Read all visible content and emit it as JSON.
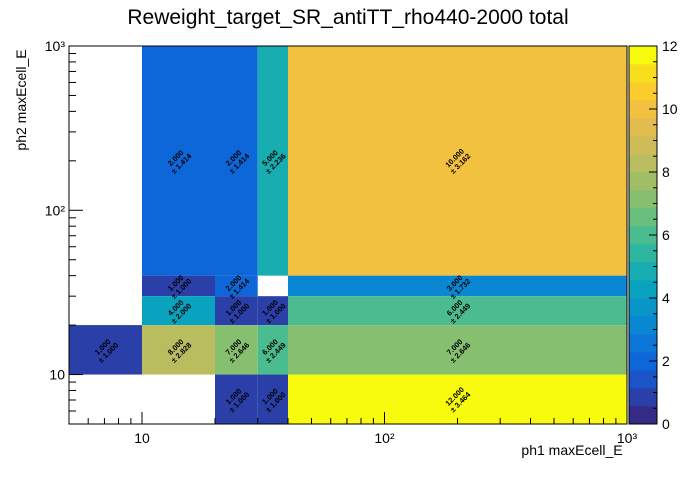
{
  "chart_data": {
    "type": "heatmap",
    "title": "Reweight_target_SR_antiTT_rho440-2000 total",
    "xlabel": "ph1 maxEcell_E",
    "ylabel": "ph2 maxEcell_E",
    "x_scale": "log",
    "y_scale": "log",
    "xlim": [
      5,
      1000
    ],
    "ylim": [
      5,
      1000
    ],
    "x_tick_labels": [
      "10",
      "10²",
      "10³"
    ],
    "y_tick_labels": [
      "10",
      "10²",
      "10³"
    ],
    "zlim": [
      0,
      12
    ],
    "colorbar_ticks": [
      "0",
      "2",
      "4",
      "6",
      "8",
      "10",
      "12"
    ],
    "palette": [
      "#352a87",
      "#2a3fa8",
      "#1b55c8",
      "#0e67d8",
      "#0d77d9",
      "#0a87d2",
      "#0896ca",
      "#0aa3bf",
      "#18adb0",
      "#2eb6a0",
      "#4bbc8f",
      "#69bf7e",
      "#86bf70",
      "#a0be66",
      "#b9bc5f",
      "#cebc59",
      "#e1bd50",
      "#f2c140",
      "#fbcd2c",
      "#f8de1c",
      "#f9fb0e"
    ],
    "cells": [
      {
        "x": [
          5,
          10
        ],
        "y": [
          10,
          20
        ],
        "value": 1,
        "label": "1.000",
        "error": "± 1.000"
      },
      {
        "x": [
          10,
          20
        ],
        "y": [
          40,
          1000
        ],
        "value": 2,
        "label": "2.000",
        "error": "± 1.414"
      },
      {
        "x": [
          10,
          20
        ],
        "y": [
          30,
          40
        ],
        "value": 1,
        "label": "1.000",
        "error": "± 1.000"
      },
      {
        "x": [
          10,
          20
        ],
        "y": [
          20,
          30
        ],
        "value": 4,
        "label": "4.000",
        "error": "± 2.000"
      },
      {
        "x": [
          10,
          20
        ],
        "y": [
          10,
          20
        ],
        "value": 8,
        "label": "8.000",
        "error": "± 2.828"
      },
      {
        "x": [
          20,
          30
        ],
        "y": [
          40,
          1000
        ],
        "value": 2,
        "label": "2.000",
        "error": "± 1.414"
      },
      {
        "x": [
          20,
          30
        ],
        "y": [
          30,
          40
        ],
        "value": 2,
        "label": "2.000",
        "error": "± 1.414"
      },
      {
        "x": [
          20,
          30
        ],
        "y": [
          20,
          30
        ],
        "value": 1,
        "label": "1.000",
        "error": "± 1.000"
      },
      {
        "x": [
          20,
          30
        ],
        "y": [
          10,
          20
        ],
        "value": 7,
        "label": "7.000",
        "error": "± 2.646"
      },
      {
        "x": [
          20,
          30
        ],
        "y": [
          5,
          10
        ],
        "value": 1,
        "label": "1.000",
        "error": "± 1.000"
      },
      {
        "x": [
          30,
          40
        ],
        "y": [
          40,
          1000
        ],
        "value": 5,
        "label": "5.000",
        "error": "± 2.236"
      },
      {
        "x": [
          30,
          40
        ],
        "y": [
          20,
          30
        ],
        "value": 1,
        "label": "1.000",
        "error": "± 1.000"
      },
      {
        "x": [
          30,
          40
        ],
        "y": [
          10,
          20
        ],
        "value": 6,
        "label": "6.000",
        "error": "± 2.449"
      },
      {
        "x": [
          30,
          40
        ],
        "y": [
          5,
          10
        ],
        "value": 1,
        "label": "1.000",
        "error": "± 1.000"
      },
      {
        "x": [
          40,
          1000
        ],
        "y": [
          40,
          1000
        ],
        "value": 10,
        "label": "10.000",
        "error": "± 3.162"
      },
      {
        "x": [
          40,
          1000
        ],
        "y": [
          30,
          40
        ],
        "value": 3,
        "label": "3.000",
        "error": "± 1.732"
      },
      {
        "x": [
          40,
          1000
        ],
        "y": [
          20,
          30
        ],
        "value": 6,
        "label": "6.000",
        "error": "± 2.449"
      },
      {
        "x": [
          40,
          1000
        ],
        "y": [
          10,
          20
        ],
        "value": 7,
        "label": "7.000",
        "error": "± 2.646"
      },
      {
        "x": [
          40,
          1000
        ],
        "y": [
          5,
          10
        ],
        "value": 12,
        "label": "12.000",
        "error": "± 3.464"
      }
    ]
  }
}
